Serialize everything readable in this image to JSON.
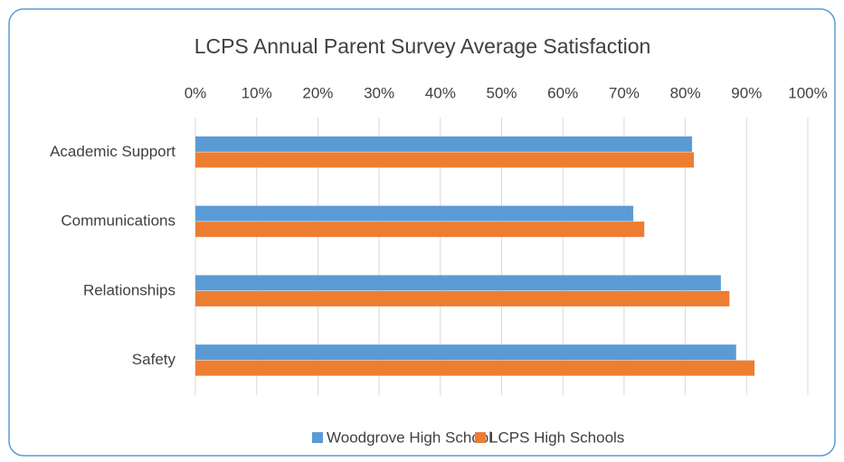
{
  "chart_data": {
    "type": "hbar",
    "title": "LCPS Annual Parent Survey Average Satisfaction",
    "categories": [
      "Academic Support",
      "Communications",
      "Relationships",
      "Safety"
    ],
    "series": [
      {
        "name": "Woodgrove High School",
        "color": "#5b9bd5",
        "values": [
          81.1,
          71.5,
          85.8,
          88.3
        ]
      },
      {
        "name": "LCPS High Schools",
        "color": "#ed7d31",
        "values": [
          81.4,
          73.3,
          87.2,
          91.3
        ]
      }
    ],
    "xlim": [
      0,
      100
    ],
    "xticks": [
      {
        "value": 0,
        "label": "0%"
      },
      {
        "value": 10,
        "label": "10%"
      },
      {
        "value": 20,
        "label": "20%"
      },
      {
        "value": 30,
        "label": "30%"
      },
      {
        "value": 40,
        "label": "40%"
      },
      {
        "value": 50,
        "label": "50%"
      },
      {
        "value": 60,
        "label": "60%"
      },
      {
        "value": 70,
        "label": "70%"
      },
      {
        "value": 80,
        "label": "80%"
      },
      {
        "value": 90,
        "label": "90%"
      },
      {
        "value": 100,
        "label": "100%"
      }
    ],
    "grid": true,
    "legend": "bottom"
  }
}
